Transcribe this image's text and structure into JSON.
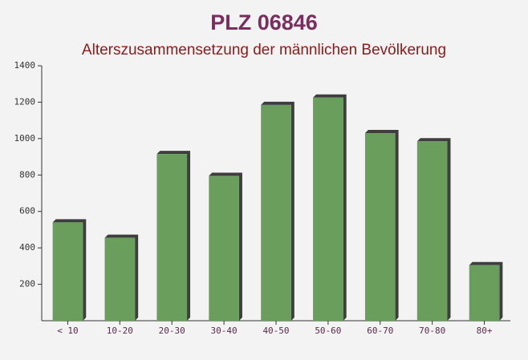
{
  "chart_data": {
    "type": "bar",
    "title": "PLZ 06846",
    "subtitle": "Alterszusammensetzung der männlichen Bevölkerung",
    "categories": [
      "< 10",
      "10-20",
      "20-30",
      "30-40",
      "40-50",
      "50-60",
      "60-70",
      "70-80",
      "80+"
    ],
    "values": [
      540,
      455,
      915,
      795,
      1185,
      1225,
      1030,
      985,
      305
    ],
    "color": "#6a9e5c",
    "ylim": [
      0,
      1400
    ],
    "yticks": [
      200,
      400,
      600,
      800,
      1000,
      1200,
      1400
    ],
    "grid": false
  }
}
